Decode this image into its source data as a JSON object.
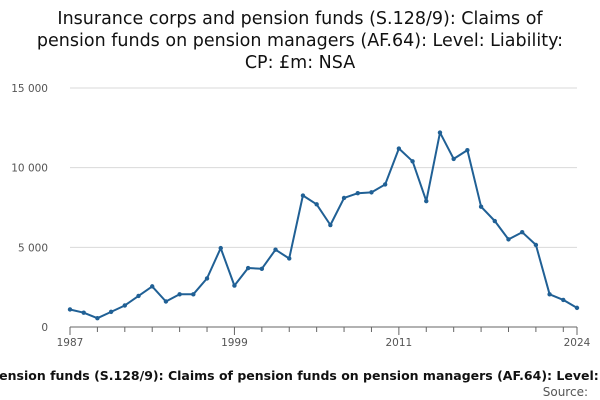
{
  "chart_data": {
    "type": "line",
    "title": "Insurance corps and pension funds (S.128/9): Claims of pension funds on pension managers (AF.64): Level: Liability: CP: £m: NSA",
    "title_lines": [
      "Insurance corps and pension funds (S.128/9): Claims of",
      "pension funds on pension managers (AF.64): Level: Liability:",
      "CP: £m: NSA"
    ],
    "xlabel": "",
    "ylabel": "",
    "x": [
      1987,
      1988,
      1989,
      1990,
      1991,
      1992,
      1993,
      1994,
      1995,
      1996,
      1997,
      1998,
      1999,
      2000,
      2001,
      2002,
      2003,
      2004,
      2005,
      2006,
      2007,
      2008,
      2009,
      2010,
      2011,
      2012,
      2013,
      2014,
      2015,
      2016,
      2017,
      2018,
      2019,
      2020,
      2021,
      2022,
      2023,
      2024
    ],
    "series": [
      {
        "name": "Insurance corps and pension funds (S.128/9): Claims of pension funds on pension managers (AF.64): Level: Liability: CP: £m: NSA",
        "color": "#206095",
        "values": [
          1100,
          900,
          550,
          950,
          1350,
          1950,
          2550,
          1600,
          2050,
          2050,
          3050,
          4950,
          2600,
          3700,
          3650,
          4850,
          4300,
          8250,
          7700,
          6400,
          8100,
          8400,
          8450,
          8950,
          11200,
          10400,
          7900,
          12200,
          10550,
          11100,
          7550,
          6650,
          5500,
          5950,
          5150,
          2050,
          1700,
          1200
        ]
      }
    ],
    "xlim": [
      1987,
      2024
    ],
    "ylim": [
      0,
      15000
    ],
    "x_ticks": [
      1987,
      1999,
      2011,
      2024
    ],
    "x_tick_labels": [
      "1987",
      "1999",
      "2011",
      "2024"
    ],
    "y_ticks": [
      0,
      5000,
      10000,
      15000
    ],
    "y_tick_labels": [
      "0",
      "5 000",
      "10 000",
      "15 000"
    ],
    "grid": true,
    "legend_position": "bottom",
    "source_label": "Source:"
  }
}
